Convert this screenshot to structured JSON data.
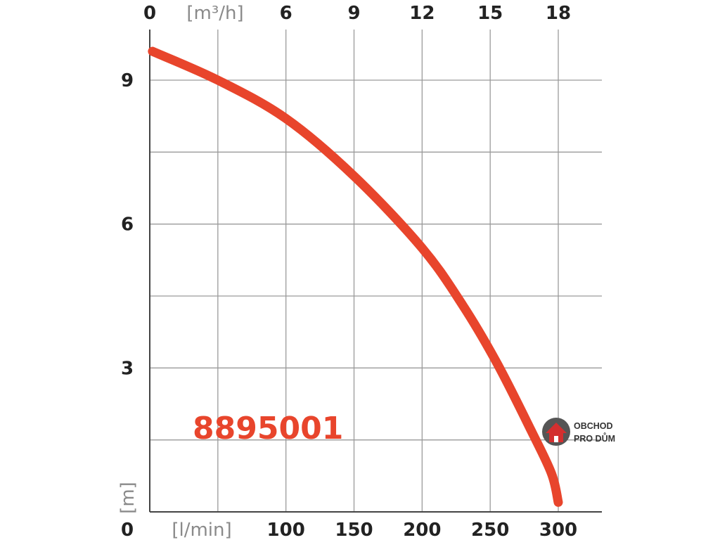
{
  "chart_data": {
    "type": "line",
    "model_label": "8895001",
    "x_primary": {
      "unit_label": "[l/min]",
      "ticks": [
        "100",
        "150",
        "200",
        "250",
        "300"
      ],
      "range": [
        0,
        330
      ]
    },
    "x_secondary": {
      "unit_label": "[m³/h]",
      "ticks": [
        "6",
        "9",
        "12",
        "15",
        "18"
      ],
      "zero_label": "0"
    },
    "y": {
      "unit_label": "[m]",
      "ticks": [
        "3",
        "6",
        "9"
      ],
      "zero_label": "0",
      "range": [
        0,
        10
      ]
    },
    "grid": true,
    "series": [
      {
        "color": "#e8452c",
        "x": [
          2,
          50,
          100,
          150,
          200,
          230,
          255,
          280,
          295,
          300
        ],
        "y": [
          9.6,
          9.0,
          8.2,
          7.0,
          5.5,
          4.3,
          3.1,
          1.7,
          0.8,
          0.2
        ]
      }
    ]
  },
  "watermark": {
    "line1": "OBCHOD",
    "line2": "PRO DŮM",
    "icon": "house-icon",
    "colors": {
      "circle": "#555555",
      "house": "#d32f2f"
    }
  }
}
